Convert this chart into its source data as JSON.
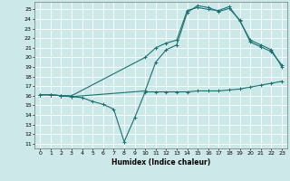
{
  "xlabel": "Humidex (Indice chaleur)",
  "bg_color": "#cde8e8",
  "grid_color": "#ffffff",
  "line_color": "#1a7070",
  "xlim": [
    -0.5,
    23.5
  ],
  "ylim": [
    10.5,
    25.8
  ],
  "yticks": [
    11,
    12,
    13,
    14,
    15,
    16,
    17,
    18,
    19,
    20,
    21,
    22,
    23,
    24,
    25
  ],
  "xticks": [
    0,
    1,
    2,
    3,
    4,
    5,
    6,
    7,
    8,
    9,
    10,
    11,
    12,
    13,
    14,
    15,
    16,
    17,
    18,
    19,
    20,
    21,
    22,
    23
  ],
  "line1_x": [
    0,
    1,
    2,
    3,
    4,
    5,
    6,
    7,
    8,
    9,
    10,
    11,
    12,
    13,
    14,
    15,
    16,
    17,
    18,
    19,
    20,
    21,
    22,
    23
  ],
  "line1_y": [
    16.1,
    16.1,
    16.0,
    15.9,
    15.8,
    15.4,
    15.1,
    14.6,
    11.2,
    13.7,
    16.4,
    16.4,
    16.4,
    16.4,
    16.4,
    16.5,
    16.5,
    16.5,
    16.6,
    16.7,
    16.9,
    17.1,
    17.3,
    17.5
  ],
  "line2_x": [
    0,
    1,
    2,
    3,
    10,
    11,
    12,
    13,
    14,
    15,
    16,
    17,
    18,
    19,
    20,
    21,
    22,
    23
  ],
  "line2_y": [
    16.1,
    16.1,
    16.0,
    16.0,
    20.0,
    21.0,
    21.5,
    21.8,
    24.9,
    25.2,
    25.0,
    24.9,
    25.3,
    23.8,
    21.8,
    21.3,
    20.8,
    19.0
  ],
  "line3_x": [
    0,
    1,
    2,
    3,
    10,
    11,
    12,
    13,
    14,
    15,
    16,
    17,
    18,
    19,
    20,
    21,
    22,
    23
  ],
  "line3_y": [
    16.1,
    16.1,
    16.0,
    15.9,
    16.5,
    19.5,
    20.8,
    21.3,
    24.7,
    25.4,
    25.2,
    24.8,
    25.1,
    23.9,
    21.6,
    21.1,
    20.6,
    19.2
  ]
}
